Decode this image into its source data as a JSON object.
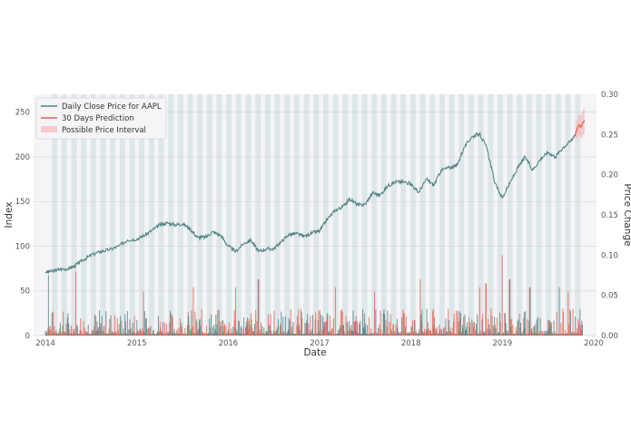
{
  "chart_data": {
    "type": "line",
    "title": "",
    "xlabel": "Date",
    "ylabel": "Index",
    "y2label": "Price Change",
    "x_ticks": [
      "2014",
      "2015",
      "2016",
      "2017",
      "2018",
      "2019",
      "2020"
    ],
    "x_range": [
      2013.87,
      2020.03
    ],
    "ylim": [
      0,
      270
    ],
    "y_ticks": [
      0,
      50,
      100,
      150,
      200,
      250
    ],
    "y2lim": [
      0,
      0.3
    ],
    "y2_ticks": [
      "0.00",
      "0.05",
      "0.10",
      "0.15",
      "0.20",
      "0.25",
      "0.30"
    ],
    "grid": true,
    "legend_position": "top-left",
    "colors": {
      "close": "#4e8080",
      "prediction": "#e8604c",
      "interval": "#f4b4b4",
      "up_bar": "#4e8080",
      "down_bar": "#e8604c",
      "band": "#dde6e8",
      "plot_bg": "#f5f5f8"
    },
    "series": [
      {
        "name": "Daily Close Price for AAPL",
        "kind": "line",
        "points": [
          [
            2014.0,
            71
          ],
          [
            2014.08,
            72
          ],
          [
            2014.15,
            74
          ],
          [
            2014.25,
            75
          ],
          [
            2014.32,
            78
          ],
          [
            2014.4,
            84
          ],
          [
            2014.5,
            90
          ],
          [
            2014.6,
            94
          ],
          [
            2014.7,
            96
          ],
          [
            2014.8,
            100
          ],
          [
            2014.9,
            107
          ],
          [
            2015.0,
            108
          ],
          [
            2015.08,
            112
          ],
          [
            2015.17,
            118
          ],
          [
            2015.25,
            124
          ],
          [
            2015.33,
            126
          ],
          [
            2015.42,
            124
          ],
          [
            2015.5,
            125
          ],
          [
            2015.58,
            120
          ],
          [
            2015.66,
            110
          ],
          [
            2015.75,
            110
          ],
          [
            2015.83,
            116
          ],
          [
            2015.92,
            112
          ],
          [
            2016.0,
            100
          ],
          [
            2016.08,
            94
          ],
          [
            2016.17,
            103
          ],
          [
            2016.25,
            107
          ],
          [
            2016.33,
            94
          ],
          [
            2016.42,
            97
          ],
          [
            2016.5,
            97
          ],
          [
            2016.58,
            105
          ],
          [
            2016.66,
            113
          ],
          [
            2016.75,
            114
          ],
          [
            2016.83,
            111
          ],
          [
            2016.92,
            115
          ],
          [
            2017.0,
            117
          ],
          [
            2017.08,
            130
          ],
          [
            2017.17,
            140
          ],
          [
            2017.25,
            144
          ],
          [
            2017.33,
            153
          ],
          [
            2017.42,
            146
          ],
          [
            2017.5,
            147
          ],
          [
            2017.58,
            160
          ],
          [
            2017.66,
            157
          ],
          [
            2017.75,
            168
          ],
          [
            2017.83,
            172
          ],
          [
            2017.92,
            172
          ],
          [
            2018.0,
            170
          ],
          [
            2018.08,
            160
          ],
          [
            2018.17,
            175
          ],
          [
            2018.25,
            168
          ],
          [
            2018.33,
            185
          ],
          [
            2018.42,
            188
          ],
          [
            2018.5,
            190
          ],
          [
            2018.58,
            210
          ],
          [
            2018.66,
            222
          ],
          [
            2018.75,
            226
          ],
          [
            2018.83,
            210
          ],
          [
            2018.92,
            170
          ],
          [
            2019.0,
            154
          ],
          [
            2019.08,
            170
          ],
          [
            2019.17,
            188
          ],
          [
            2019.25,
            200
          ],
          [
            2019.33,
            185
          ],
          [
            2019.42,
            198
          ],
          [
            2019.5,
            205
          ],
          [
            2019.58,
            200
          ],
          [
            2019.66,
            210
          ],
          [
            2019.75,
            218
          ],
          [
            2019.8,
            226
          ]
        ]
      },
      {
        "name": "30 Days Prediction",
        "kind": "line",
        "points": [
          [
            2019.8,
            226
          ],
          [
            2019.82,
            232
          ],
          [
            2019.84,
            236
          ],
          [
            2019.86,
            233
          ],
          [
            2019.88,
            238
          ],
          [
            2019.9,
            241
          ]
        ]
      },
      {
        "name": "Possible Price Interval",
        "kind": "area",
        "points": [
          [
            2019.8,
            218,
            234
          ],
          [
            2019.82,
            222,
            242
          ],
          [
            2019.84,
            224,
            248
          ],
          [
            2019.86,
            220,
            246
          ],
          [
            2019.88,
            224,
            252
          ],
          [
            2019.9,
            226,
            256
          ]
        ]
      }
    ]
  }
}
